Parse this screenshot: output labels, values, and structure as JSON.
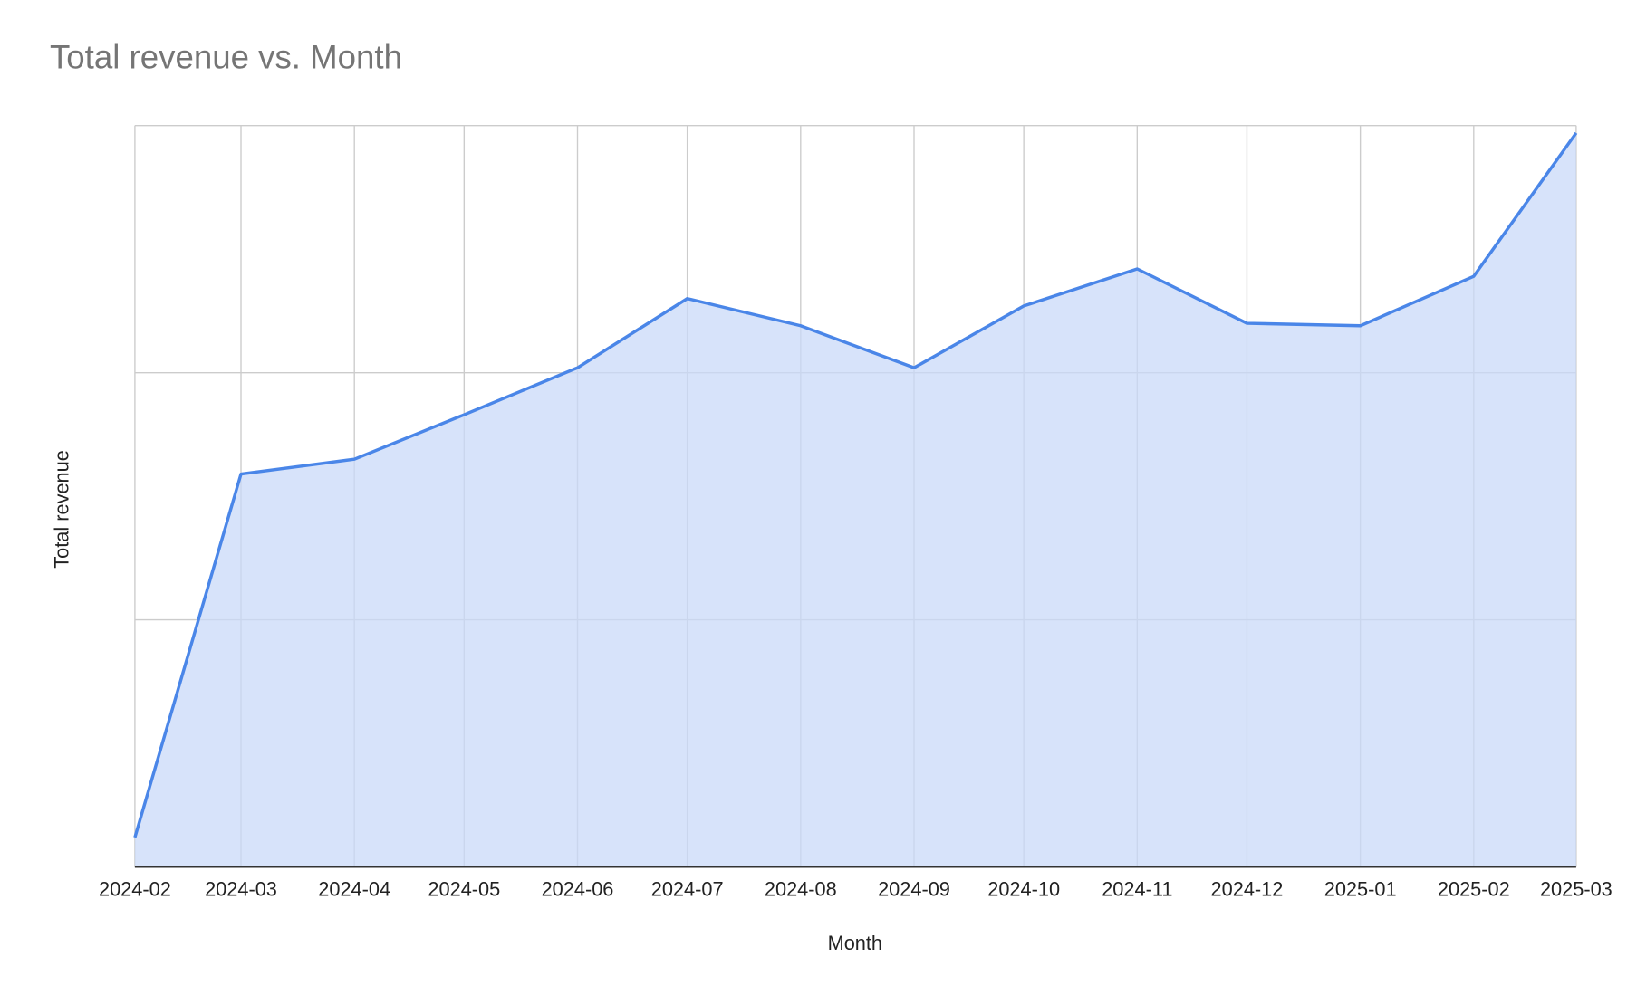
{
  "chart_data": {
    "type": "area",
    "title": "Total revenue vs. Month",
    "x_label": "Month",
    "y_label": "Total revenue",
    "x": [
      "2024-02",
      "2024-03",
      "2024-04",
      "2024-05",
      "2024-06",
      "2024-07",
      "2024-08",
      "2024-09",
      "2024-10",
      "2024-11",
      "2024-12",
      "2025-01",
      "2025-02",
      "2025-03"
    ],
    "series": [
      {
        "name": "Total revenue",
        "color": "#4a86e8",
        "fill": "#c9daf8",
        "values": [
          0.12,
          1.59,
          1.65,
          1.83,
          2.02,
          2.3,
          2.19,
          2.02,
          2.27,
          2.42,
          2.2,
          2.19,
          2.39,
          2.97
        ]
      }
    ],
    "xlim": [
      "2024-02",
      "2025-03"
    ],
    "ylim": [
      0,
      3
    ],
    "yticks": [
      0,
      1,
      2,
      3
    ],
    "ytick_labels": false,
    "grid": true,
    "legend": false
  }
}
